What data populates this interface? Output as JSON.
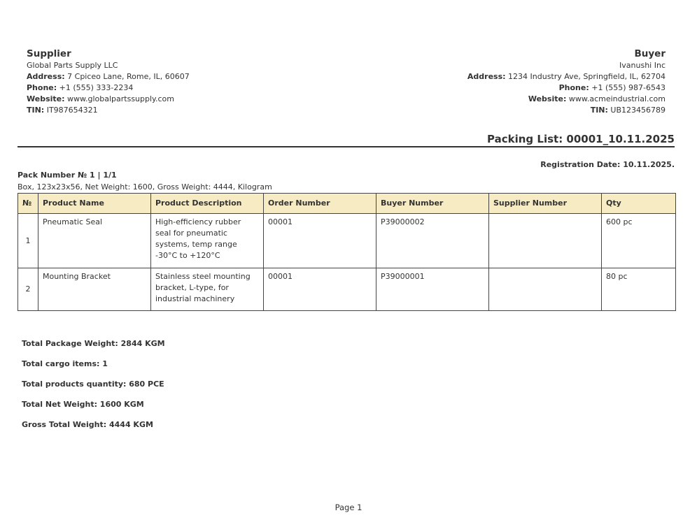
{
  "supplier": {
    "heading": "Supplier",
    "name": "Global Parts Supply LLC",
    "address_label": "Address:",
    "address": "7 Cpiceo Lane, Rome, IL, 60607",
    "phone_label": "Phone:",
    "phone": "+1 (555) 333-2234",
    "website_label": "Website:",
    "website": "www.globalpartssupply.com",
    "tin_label": "TIN:",
    "tin": "IT987654321"
  },
  "buyer": {
    "heading": "Buyer",
    "name": "Ivanushi Inc",
    "address_label": "Address:",
    "address": "1234 Industry Ave, Springfield, IL, 62704",
    "phone_label": "Phone:",
    "phone": "+1 (555) 987-6543",
    "website_label": "Website:",
    "website": "www.acmeindustrial.com",
    "tin_label": "TIN:",
    "tin": "UB123456789"
  },
  "title": "Packing List: 00001_10.11.2025",
  "registration_date": "Registration Date: 10.11.2025.",
  "pack": {
    "number": "Pack Number № 1 | 1/1",
    "description": "Box, 123x23x56, Net Weight: 1600, Gross Weight: 4444, Kilogram"
  },
  "table": {
    "headers": [
      "№",
      "Product Name",
      "Product Description",
      "Order Number",
      "Buyer Number",
      "Supplier Number",
      "Qty"
    ],
    "rows": [
      [
        "1",
        "Pneumatic Seal",
        "High-efficiency rubber seal for pneumatic systems, temp range -30°C to +120°C",
        "00001",
        "P39000002",
        "",
        "600 pc"
      ],
      [
        "2",
        "Mounting Bracket",
        "Stainless steel mounting bracket, L-type, for industrial machinery",
        "00001",
        "P39000001",
        "",
        "80 pc"
      ]
    ],
    "header_color": "#f7ebc3"
  },
  "totals": [
    "Total Package Weight: 2844 KGM",
    "Total cargo items: 1",
    "Total products quantity: 680 PCE",
    "Total Net Weight: 1600 KGM",
    "Gross Total Weight: 4444 KGM"
  ],
  "footer": {
    "page": "Page 1"
  }
}
